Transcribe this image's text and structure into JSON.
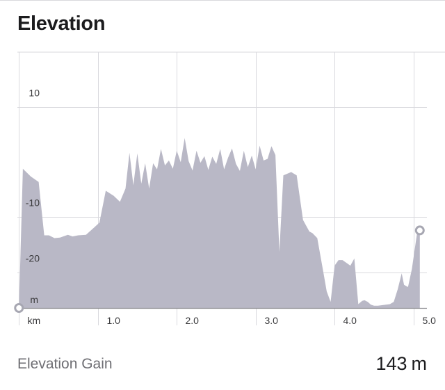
{
  "header": {
    "title": "Elevation"
  },
  "footer": {
    "gain_label": "Elevation Gain",
    "gain_value": "143",
    "gain_unit": "m"
  },
  "colors": {
    "fill": "#b9b8c6",
    "grid": "#d9d9de",
    "axis": "#8e8e93",
    "marker": "#a7a7b2"
  },
  "chart_data": {
    "type": "area",
    "title": "",
    "xlabel": "",
    "ylabel": "",
    "x_unit_label": "km",
    "y_unit_label": "m",
    "xlim": [
      -0.02,
      5.17
    ],
    "ylim": [
      -26.5,
      20
    ],
    "x_ticks": [
      0,
      1,
      2,
      3,
      4,
      5
    ],
    "x_tick_labels": [
      "km",
      "1.0",
      "2.0",
      "3.0",
      "4.0",
      "5.0"
    ],
    "y_ticks": [
      10,
      -10,
      -20
    ],
    "y_tick_labels": [
      "10",
      "-10",
      "-20"
    ],
    "grid": true,
    "start_marker": [
      0.0,
      -26.5
    ],
    "end_marker": [
      5.08,
      -12.4
    ],
    "x": [
      0.0,
      0.05,
      0.15,
      0.25,
      0.32,
      0.38,
      0.45,
      0.52,
      0.62,
      0.68,
      0.75,
      0.85,
      0.95,
      1.02,
      1.1,
      1.2,
      1.28,
      1.35,
      1.4,
      1.45,
      1.5,
      1.55,
      1.6,
      1.65,
      1.7,
      1.75,
      1.8,
      1.85,
      1.9,
      1.95,
      2.0,
      2.05,
      2.1,
      2.15,
      2.2,
      2.25,
      2.3,
      2.35,
      2.4,
      2.45,
      2.5,
      2.55,
      2.6,
      2.65,
      2.7,
      2.75,
      2.8,
      2.85,
      2.9,
      2.95,
      3.0,
      3.05,
      3.1,
      3.15,
      3.2,
      3.25,
      3.3,
      3.35,
      3.45,
      3.52,
      3.6,
      3.68,
      3.72,
      3.78,
      3.85,
      3.9,
      3.95,
      4.0,
      4.05,
      4.1,
      4.2,
      4.25,
      4.3,
      4.35,
      4.38,
      4.42,
      4.46,
      4.5,
      4.55,
      4.65,
      4.7,
      4.75,
      4.8,
      4.85,
      4.88,
      4.93,
      4.98,
      5.05,
      5.08
    ],
    "y": [
      -26.5,
      -1.2,
      -2.6,
      -3.6,
      -13.3,
      -13.3,
      -13.8,
      -13.7,
      -13.2,
      -13.5,
      -13.3,
      -13.2,
      -11.9,
      -11.0,
      -5.2,
      -6.1,
      -7.2,
      -4.8,
      1.7,
      -4.2,
      1.6,
      -3.9,
      -0.2,
      -4.8,
      -0.2,
      -1.3,
      2.4,
      -0.6,
      0.3,
      -1.2,
      2.1,
      0.0,
      4.4,
      0.2,
      -1.5,
      2.1,
      -0.1,
      1.1,
      -1.4,
      1.0,
      -0.3,
      2.4,
      -1.3,
      0.8,
      2.5,
      -0.3,
      -1.6,
      2.1,
      -0.9,
      1.2,
      -1.3,
      3.0,
      0.3,
      0.6,
      2.9,
      1.3,
      -16.3,
      -2.4,
      -1.8,
      -2.4,
      -10.5,
      -12.6,
      -12.9,
      -13.8,
      -19.4,
      -23.5,
      -25.4,
      -18.8,
      -17.8,
      -17.8,
      -18.8,
      -17.5,
      -25.8,
      -25.2,
      -25.1,
      -25.4,
      -25.9,
      -26.1,
      -26.1,
      -25.9,
      -25.8,
      -25.4,
      -23.1,
      -20.2,
      -22.3,
      -22.7,
      -19.4,
      -12.4,
      -12.4
    ]
  }
}
